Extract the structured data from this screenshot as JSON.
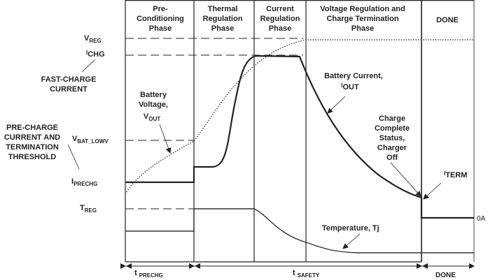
{
  "phases": [
    {
      "line1": "Pre-",
      "line2": "Conditioning",
      "line3": "Phase"
    },
    {
      "line1": "Thermal",
      "line2": "Regulation",
      "line3": "Phase"
    },
    {
      "line1": "Current",
      "line2": "Regulation",
      "line3": "Phase"
    },
    {
      "line1": "Voltage Regulation and",
      "line2": "Charge Termination",
      "line3": "Phase"
    },
    {
      "line1": "DONE"
    }
  ],
  "levels": {
    "vreg": {
      "main": "V",
      "sub": "REG"
    },
    "ichg": {
      "main": "I",
      "sub": "CHG"
    },
    "vbat_lowv": {
      "main": "V",
      "sub": "BAT_LOWV"
    },
    "iprechg": {
      "main": "I",
      "sub": "PRECHG"
    },
    "treg": {
      "main": "T",
      "sub": "REG"
    }
  },
  "annotations": {
    "fast_charge": {
      "line1": "FAST-CHARGE",
      "line2": "CURRENT"
    },
    "pre_charge": {
      "line1": "PRE-CHARGE",
      "line2": "CURRENT AND",
      "line3": "TERMINATION",
      "line4": "THRESHOLD"
    },
    "battery_voltage": {
      "line1": "Battery",
      "line2": "Voltage,",
      "main": "V",
      "sub": "OUT"
    },
    "battery_current": {
      "line1": "Battery Current,",
      "main": "I",
      "sub": "OUT"
    },
    "charge_complete": {
      "line1": "Charge",
      "line2": "Complete",
      "line3": "Status,",
      "line4": "Charger",
      "line5": "Off"
    },
    "iterm": {
      "main": "I",
      "sub": "TERM"
    },
    "zero": "0A",
    "temperature": "Temperature,  Tj"
  },
  "timing": {
    "tprechg": {
      "main": "t",
      "sub": "PRECHG"
    },
    "tsafety": {
      "main": "t",
      "sub": "SAFETY"
    },
    "done": "DONE"
  }
}
